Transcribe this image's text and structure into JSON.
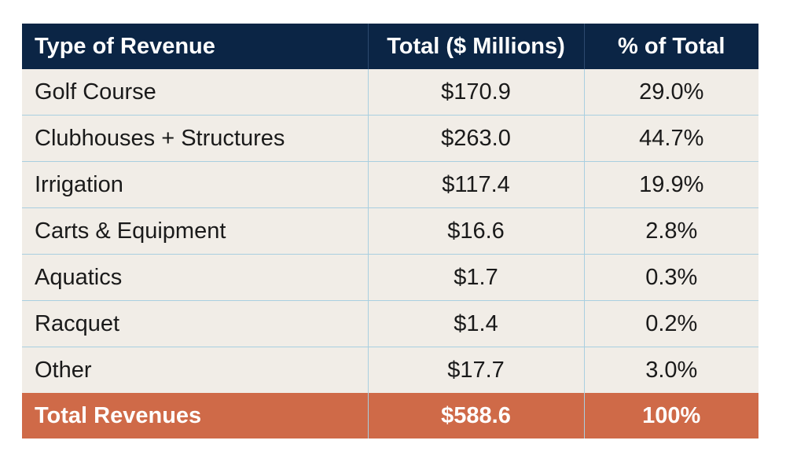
{
  "chart_data": {
    "type": "table",
    "columns": [
      "Type of Revenue",
      "Total ($ Millions)",
      "% of Total"
    ],
    "rows": [
      {
        "type": "Golf Course",
        "total": "$170.9",
        "percent": "29.0%"
      },
      {
        "type": "Clubhouses + Structures",
        "total": "$263.0",
        "percent": "44.7%"
      },
      {
        "type": "Irrigation",
        "total": "$117.4",
        "percent": "19.9%"
      },
      {
        "type": "Carts & Equipment",
        "total": "$16.6",
        "percent": "2.8%"
      },
      {
        "type": "Aquatics",
        "total": "$1.7",
        "percent": "0.3%"
      },
      {
        "type": "Racquet",
        "total": "$1.4",
        "percent": "0.2%"
      },
      {
        "type": "Other",
        "total": "$17.7",
        "percent": "3.0%"
      }
    ],
    "total_row": {
      "type": "Total Revenues",
      "total": "$588.6",
      "percent": "100%"
    }
  },
  "colors": {
    "header_bg": "#0b2545",
    "row_bg": "#f1ede7",
    "total_bg": "#cf6a48",
    "grid_line": "#a9cfe0"
  }
}
